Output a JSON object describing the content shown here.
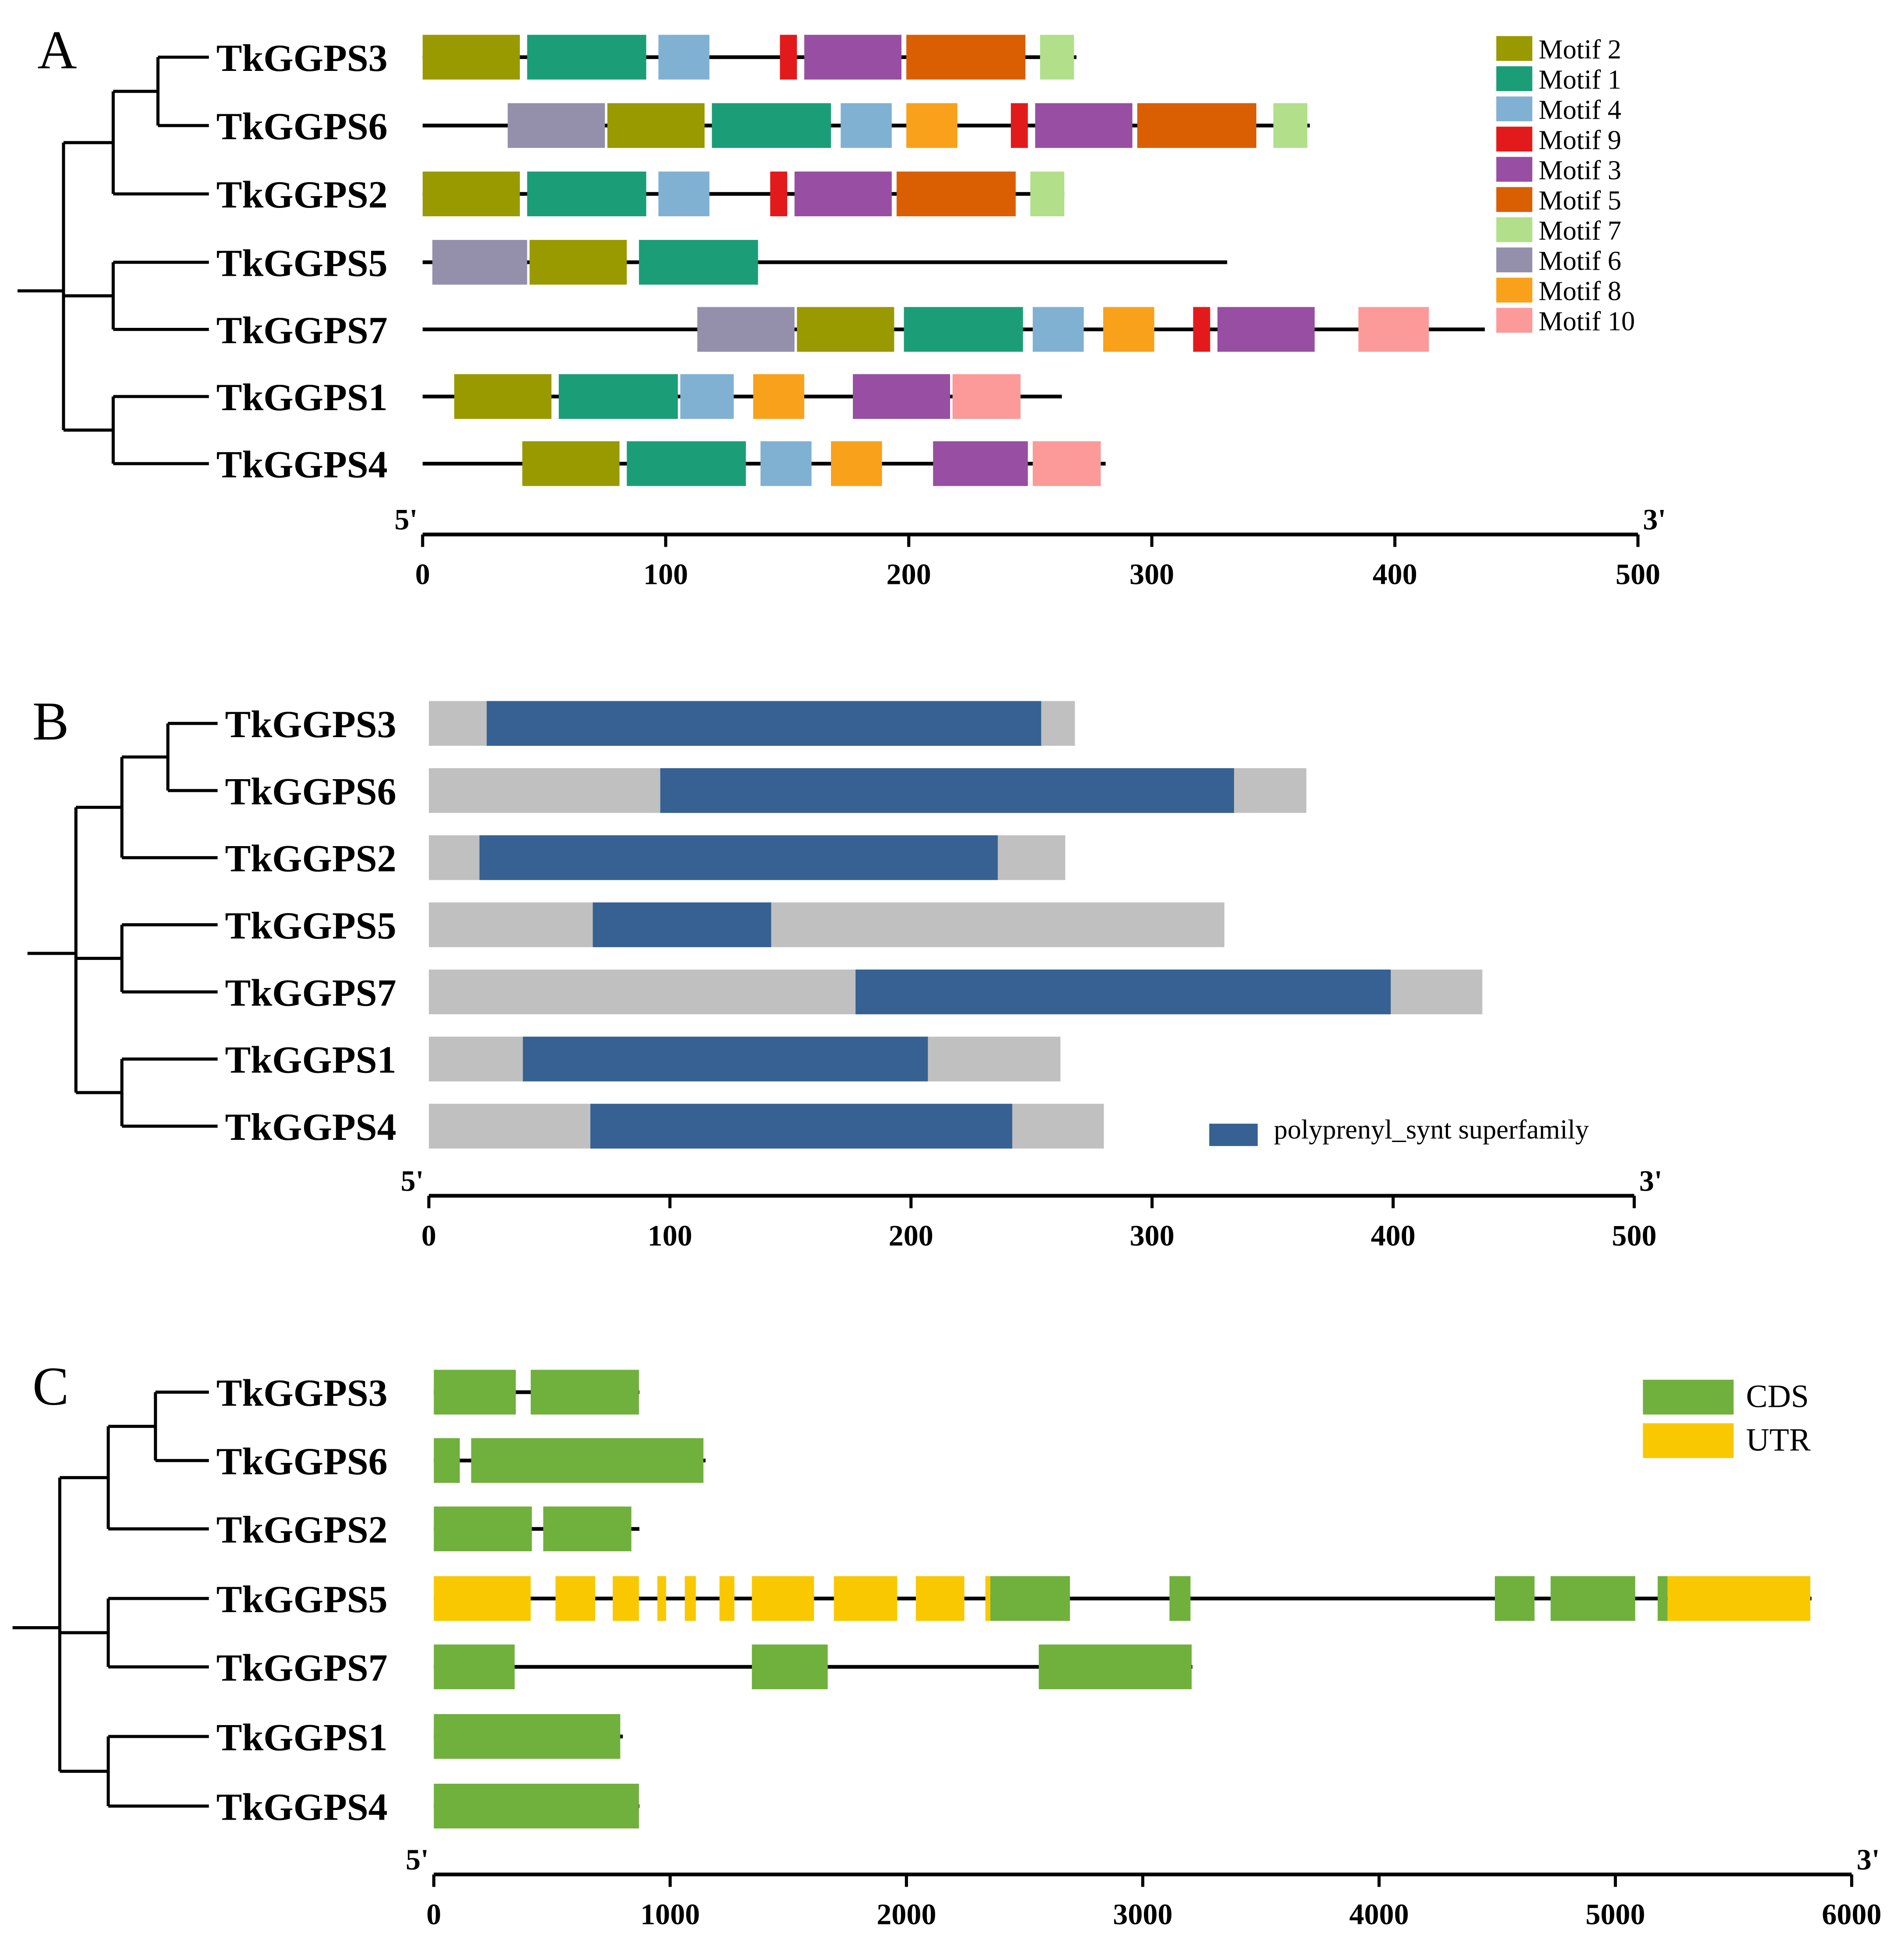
{
  "genes": [
    "TkGGPS3",
    "TkGGPS6",
    "TkGGPS2",
    "TkGGPS5",
    "TkGGPS7",
    "TkGGPS1",
    "TkGGPS4"
  ],
  "chart_data": [
    {
      "panel": "A",
      "type": "motif-map",
      "unit": "aa",
      "axis": {
        "min": 0,
        "max": 500,
        "ticks": [
          "0",
          "100",
          "200",
          "300",
          "400",
          "500"
        ],
        "start_label": "5'",
        "end_label": "3'"
      },
      "legend": [
        {
          "name": "Motif 2",
          "color": "#999900"
        },
        {
          "name": "Motif 1",
          "color": "#1b9e77"
        },
        {
          "name": "Motif 4",
          "color": "#80b1d3"
        },
        {
          "name": "Motif 9",
          "color": "#e31a1c"
        },
        {
          "name": "Motif 3",
          "color": "#984ea3"
        },
        {
          "name": "Motif 5",
          "color": "#d95f02"
        },
        {
          "name": "Motif 7",
          "color": "#b2df8a"
        },
        {
          "name": "Motif 6",
          "color": "#948faa"
        },
        {
          "name": "Motif 8",
          "color": "#f9a11b"
        },
        {
          "name": "Motif 10",
          "color": "#fb9a99"
        }
      ],
      "rows": [
        {
          "gene": "TkGGPS3",
          "length": 269,
          "motifs": [
            [
              "Motif 2",
              0,
              40
            ],
            [
              "Motif 1",
              43,
              92
            ],
            [
              "Motif 4",
              97,
              118
            ],
            [
              "Motif 9",
              147,
              154
            ],
            [
              "Motif 3",
              157,
              197
            ],
            [
              "Motif 5",
              199,
              248
            ],
            [
              "Motif 7",
              254,
              268
            ]
          ]
        },
        {
          "gene": "TkGGPS6",
          "length": 365,
          "motifs": [
            [
              "Motif 6",
              35,
              75
            ],
            [
              "Motif 2",
              76,
              116
            ],
            [
              "Motif 1",
              119,
              168
            ],
            [
              "Motif 4",
              172,
              193
            ],
            [
              "Motif 8",
              199,
              220
            ],
            [
              "Motif 9",
              242,
              249
            ],
            [
              "Motif 3",
              252,
              292
            ],
            [
              "Motif 5",
              294,
              343
            ],
            [
              "Motif 7",
              350,
              364
            ]
          ]
        },
        {
          "gene": "TkGGPS2",
          "length": 264,
          "motifs": [
            [
              "Motif 2",
              0,
              40
            ],
            [
              "Motif 1",
              43,
              92
            ],
            [
              "Motif 4",
              97,
              118
            ],
            [
              "Motif 9",
              143,
              150
            ],
            [
              "Motif 3",
              153,
              193
            ],
            [
              "Motif 5",
              195,
              244
            ],
            [
              "Motif 7",
              250,
              264
            ]
          ]
        },
        {
          "gene": "TkGGPS5",
          "length": 331,
          "motifs": [
            [
              "Motif 6",
              4,
              43
            ],
            [
              "Motif 2",
              44,
              84
            ],
            [
              "Motif 1",
              89,
              138
            ]
          ]
        },
        {
          "gene": "TkGGPS7",
          "length": 437,
          "motifs": [
            [
              "Motif 6",
              113,
              153
            ],
            [
              "Motif 2",
              154,
              194
            ],
            [
              "Motif 1",
              198,
              247
            ],
            [
              "Motif 4",
              251,
              272
            ],
            [
              "Motif 8",
              280,
              301
            ],
            [
              "Motif 9",
              317,
              324
            ],
            [
              "Motif 3",
              327,
              367
            ],
            [
              "Motif 10",
              385,
              414
            ]
          ]
        },
        {
          "gene": "TkGGPS1",
          "length": 263,
          "motifs": [
            [
              "Motif 2",
              13,
              53
            ],
            [
              "Motif 1",
              56,
              105
            ],
            [
              "Motif 4",
              106,
              128
            ],
            [
              "Motif 8",
              136,
              157
            ],
            [
              "Motif 3",
              177,
              217
            ],
            [
              "Motif 10",
              218,
              246
            ]
          ]
        },
        {
          "gene": "TkGGPS4",
          "length": 281,
          "motifs": [
            [
              "Motif 2",
              41,
              81
            ],
            [
              "Motif 1",
              84,
              133
            ],
            [
              "Motif 4",
              139,
              160
            ],
            [
              "Motif 8",
              168,
              189
            ],
            [
              "Motif 3",
              210,
              249
            ],
            [
              "Motif 10",
              251,
              279
            ]
          ]
        }
      ]
    },
    {
      "panel": "B",
      "type": "domain-map",
      "unit": "aa",
      "axis": {
        "min": 0,
        "max": 500,
        "ticks": [
          "0",
          "100",
          "200",
          "300",
          "400",
          "500"
        ],
        "start_label": "5'",
        "end_label": "3'"
      },
      "protein_color": "#c0c0c0",
      "legend": [
        {
          "name": "polyprenyl_synt superfamily",
          "color": "#366192"
        }
      ],
      "rows": [
        {
          "gene": "TkGGPS3",
          "length": 268,
          "domain": [
            24,
            254
          ]
        },
        {
          "gene": "TkGGPS6",
          "length": 364,
          "domain": [
            96,
            334
          ]
        },
        {
          "gene": "TkGGPS2",
          "length": 264,
          "domain": [
            21,
            236
          ]
        },
        {
          "gene": "TkGGPS5",
          "length": 330,
          "domain": [
            68,
            142
          ]
        },
        {
          "gene": "TkGGPS7",
          "length": 437,
          "domain": [
            177,
            399
          ]
        },
        {
          "gene": "TkGGPS1",
          "length": 262,
          "domain": [
            39,
            207
          ]
        },
        {
          "gene": "TkGGPS4",
          "length": 280,
          "domain": [
            67,
            242
          ]
        }
      ]
    },
    {
      "panel": "C",
      "type": "gene-structure",
      "unit": "bp",
      "axis": {
        "min": 0,
        "max": 6000,
        "ticks": [
          "0",
          "1000",
          "2000",
          "3000",
          "4000",
          "5000",
          "6000"
        ],
        "start_label": "5'",
        "end_label": "3'"
      },
      "legend": [
        {
          "name": "CDS",
          "color": "#70b03c"
        },
        {
          "name": "UTR",
          "color": "#f9c800"
        }
      ],
      "rows": [
        {
          "gene": "TkGGPS3",
          "length": 870,
          "features": [
            [
              "CDS",
              0,
              347
            ],
            [
              "CDS",
              410,
              868
            ]
          ]
        },
        {
          "gene": "TkGGPS6",
          "length": 1150,
          "features": [
            [
              "CDS",
              0,
              110
            ],
            [
              "CDS",
              158,
              1141
            ]
          ]
        },
        {
          "gene": "TkGGPS2",
          "length": 870,
          "features": [
            [
              "CDS",
              0,
              415
            ],
            [
              "CDS",
              463,
              836
            ]
          ]
        },
        {
          "gene": "TkGGPS5",
          "length": 5830,
          "features": [
            [
              "UTR",
              0,
              410
            ],
            [
              "UTR",
              515,
              683
            ],
            [
              "UTR",
              757,
              868
            ],
            [
              "UTR",
              946,
              983
            ],
            [
              "UTR",
              1062,
              1109
            ],
            [
              "UTR",
              1209,
              1272
            ],
            [
              "UTR",
              1346,
              1609
            ],
            [
              "UTR",
              1693,
              1961
            ],
            [
              "UTR",
              2040,
              2245
            ],
            [
              "UTR",
              2334,
              2355
            ],
            [
              "CDS",
              2355,
              2692
            ],
            [
              "CDS",
              3113,
              3202
            ],
            [
              "CDS",
              4490,
              4658
            ],
            [
              "CDS",
              4726,
              5084
            ],
            [
              "CDS",
              5179,
              5221
            ],
            [
              "UTR",
              5221,
              5825
            ]
          ]
        },
        {
          "gene": "TkGGPS7",
          "length": 3210,
          "features": [
            [
              "CDS",
              0,
              342
            ],
            [
              "CDS",
              1346,
              1667
            ],
            [
              "CDS",
              2560,
              3207
            ]
          ]
        },
        {
          "gene": "TkGGPS1",
          "length": 800,
          "features": [
            [
              "CDS",
              0,
              789
            ]
          ]
        },
        {
          "gene": "TkGGPS4",
          "length": 870,
          "features": [
            [
              "CDS",
              0,
              868
            ]
          ]
        }
      ]
    }
  ]
}
